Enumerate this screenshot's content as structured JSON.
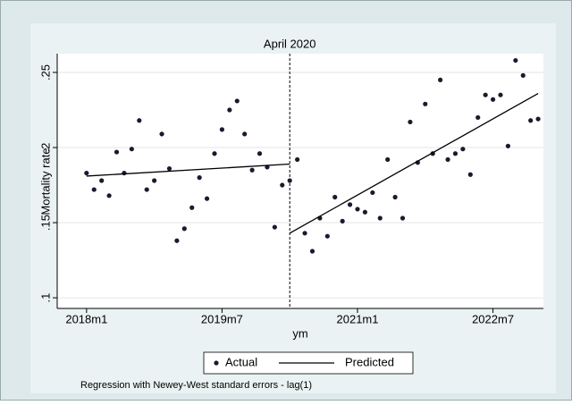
{
  "chart_data": {
    "type": "scatter",
    "ylabel": "Mortality rate",
    "xlabel": "ym",
    "note": "Regression with Newey-West standard errors - lag(1)",
    "annotations": [
      {
        "x": 723,
        "text": "April 2020"
      }
    ],
    "xlim": [
      692.1,
      756.7
    ],
    "ylim": [
      0.0929,
      0.2625
    ],
    "xticks": [
      {
        "value": 696,
        "label": "2018m1"
      },
      {
        "value": 714,
        "label": "2019m7"
      },
      {
        "value": 732,
        "label": "2021m1"
      },
      {
        "value": 750,
        "label": "2022m7"
      }
    ],
    "yticks": [
      {
        "value": 0.1,
        "label": ".1"
      },
      {
        "value": 0.15,
        "label": ".15"
      },
      {
        "value": 0.2,
        "label": ".2"
      },
      {
        "value": 0.25,
        "label": ".25"
      }
    ],
    "grid": true,
    "series": [
      {
        "name": "Actual",
        "kind": "points",
        "color": "#1a1a2e",
        "x": [
          696,
          697,
          698,
          699,
          700,
          701,
          702,
          703,
          704,
          705,
          706,
          707,
          708,
          709,
          710,
          711,
          712,
          713,
          714,
          715,
          716,
          717,
          718,
          719,
          720,
          721,
          722,
          723,
          724,
          725,
          726,
          727,
          728,
          729,
          730,
          731,
          732,
          733,
          734,
          735,
          736,
          737,
          738,
          739,
          740,
          741,
          742,
          743,
          744,
          745,
          746,
          747,
          748,
          749,
          750,
          751,
          752,
          753,
          754,
          755,
          756
        ],
        "values": [
          0.183,
          0.172,
          0.178,
          0.168,
          0.197,
          0.183,
          0.199,
          0.218,
          0.172,
          0.178,
          0.209,
          0.186,
          0.138,
          0.146,
          0.16,
          0.18,
          0.166,
          0.196,
          0.212,
          0.225,
          0.231,
          0.209,
          0.185,
          0.196,
          0.187,
          0.147,
          0.175,
          0.178,
          0.192,
          0.143,
          0.131,
          0.153,
          0.141,
          0.167,
          0.151,
          0.162,
          0.159,
          0.157,
          0.17,
          0.153,
          0.192,
          0.167,
          0.153,
          0.217,
          0.19,
          0.229,
          0.196,
          0.245,
          0.192,
          0.196,
          0.199,
          0.182,
          0.22,
          0.235,
          0.232,
          0.235,
          0.201,
          0.258,
          0.248,
          0.218,
          0.219
        ]
      },
      {
        "name": "Predicted",
        "kind": "line",
        "color": "#000000",
        "x": [
          696,
          723,
          null,
          723,
          756
        ],
        "values": [
          0.181,
          0.189,
          null,
          0.143,
          0.236
        ]
      }
    ]
  }
}
